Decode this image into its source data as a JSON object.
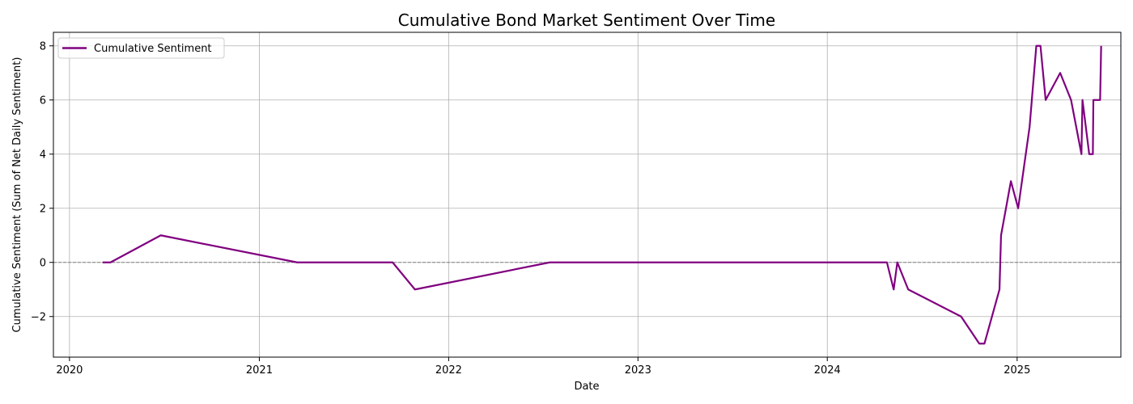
{
  "chart_data": {
    "type": "line",
    "title": "Cumulative Bond Market Sentiment Over Time",
    "xlabel": "Date",
    "ylabel": "Cumulative Sentiment (Sum of Net Daily Sentiment)",
    "xlim": [
      "2019-12-01",
      "2025-07-20"
    ],
    "ylim": [
      -3.5,
      8.5
    ],
    "x_ticks": [
      "2020-01-01",
      "2021-01-01",
      "2022-01-01",
      "2023-01-01",
      "2024-01-01",
      "2025-01-01"
    ],
    "x_tick_labels": [
      "2020",
      "2021",
      "2022",
      "2023",
      "2024",
      "2025"
    ],
    "y_ticks": [
      -2,
      0,
      2,
      4,
      6,
      8
    ],
    "y_tick_labels": [
      "−2",
      "0",
      "2",
      "4",
      "6",
      "8"
    ],
    "grid": true,
    "reference_line": {
      "y": 0,
      "style": "dashed",
      "color": "#808080"
    },
    "legend": {
      "placement": "upper-left",
      "entries": [
        "Cumulative Sentiment"
      ]
    },
    "series": [
      {
        "name": "Cumulative Sentiment",
        "color": "#800080",
        "points": [
          {
            "x": "2020-03-05",
            "y": 0
          },
          {
            "x": "2020-03-20",
            "y": 0
          },
          {
            "x": "2020-06-25",
            "y": 1
          },
          {
            "x": "2021-03-15",
            "y": 0
          },
          {
            "x": "2021-09-15",
            "y": 0
          },
          {
            "x": "2021-10-28",
            "y": -1
          },
          {
            "x": "2022-07-15",
            "y": 0
          },
          {
            "x": "2024-04-25",
            "y": 0
          },
          {
            "x": "2024-05-08",
            "y": -1
          },
          {
            "x": "2024-05-15",
            "y": 0
          },
          {
            "x": "2024-06-05",
            "y": -1
          },
          {
            "x": "2024-09-15",
            "y": -2
          },
          {
            "x": "2024-10-20",
            "y": -3
          },
          {
            "x": "2024-10-30",
            "y": -3
          },
          {
            "x": "2024-11-28",
            "y": -1
          },
          {
            "x": "2024-12-01",
            "y": 1
          },
          {
            "x": "2024-12-20",
            "y": 3
          },
          {
            "x": "2025-01-03",
            "y": 2
          },
          {
            "x": "2025-01-25",
            "y": 5
          },
          {
            "x": "2025-02-07",
            "y": 8
          },
          {
            "x": "2025-02-15",
            "y": 8
          },
          {
            "x": "2025-02-25",
            "y": 6
          },
          {
            "x": "2025-03-25",
            "y": 7
          },
          {
            "x": "2025-04-15",
            "y": 6
          },
          {
            "x": "2025-05-05",
            "y": 4
          },
          {
            "x": "2025-05-07",
            "y": 6
          },
          {
            "x": "2025-05-20",
            "y": 4
          },
          {
            "x": "2025-05-27",
            "y": 4
          },
          {
            "x": "2025-05-28",
            "y": 6
          },
          {
            "x": "2025-06-10",
            "y": 6
          },
          {
            "x": "2025-06-12",
            "y": 8
          }
        ]
      }
    ]
  }
}
